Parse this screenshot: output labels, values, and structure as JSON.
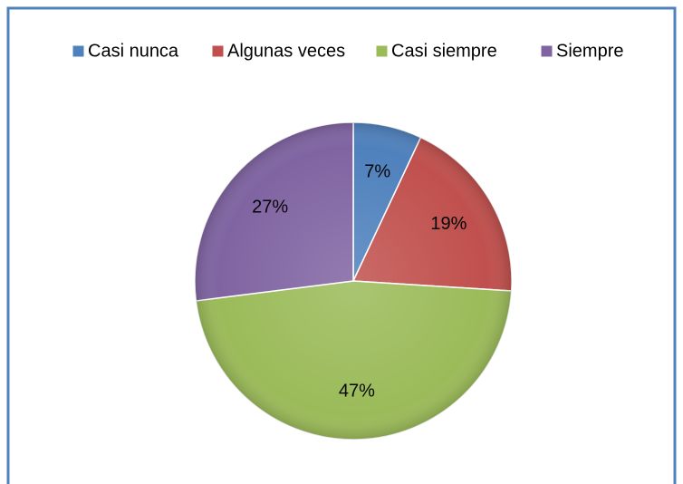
{
  "chart_data": {
    "type": "pie",
    "categories": [
      "Casi nunca",
      "Algunas veces",
      "Casi siempre",
      "Siempre"
    ],
    "values": [
      7,
      19,
      47,
      27
    ],
    "value_labels": [
      "7%",
      "19%",
      "47%",
      "27%"
    ],
    "colors": [
      "#4f81bd",
      "#c0504d",
      "#9bbb59",
      "#8064a2"
    ],
    "legend": "top"
  }
}
